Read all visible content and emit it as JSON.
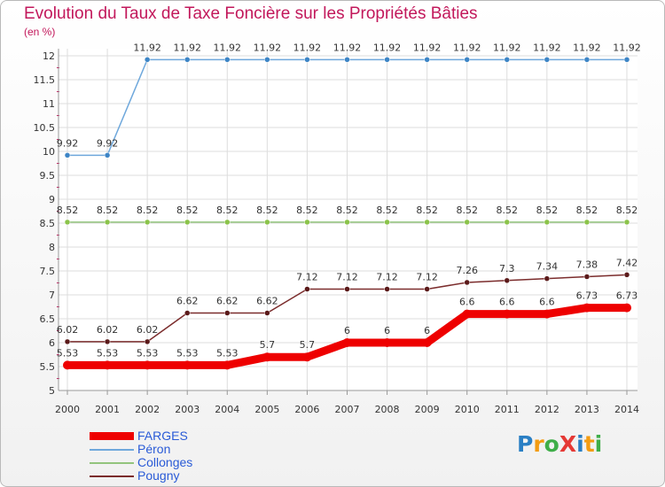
{
  "title": "Evolution du Taux de Taxe Foncière sur les Propriétés Bâties",
  "unit_label": "(en %)",
  "logo": {
    "text": "ProXiti",
    "letters": [
      "P",
      "r",
      "o",
      "X",
      "i",
      "t",
      "i"
    ],
    "colors": [
      "#2a7fc4",
      "#f39c12",
      "#3fae49",
      "#e53935",
      "#2a7fc4",
      "#f39c12",
      "#3fae49"
    ]
  },
  "chart_data": {
    "type": "line",
    "title": "Evolution du Taux de Taxe Foncière sur les Propriétés Bâties",
    "ylabel": "(en %)",
    "xlabel": "",
    "ylim": [
      5,
      12
    ],
    "yticks": [
      5,
      5.5,
      6,
      6.5,
      7,
      7.5,
      8,
      8.5,
      9,
      9.5,
      10,
      10.5,
      11,
      11.5,
      12
    ],
    "ytick_labels": [
      "5",
      "5.5",
      "6",
      "6.5",
      "7",
      "7.5",
      "8",
      "8.5",
      "9",
      "9.5",
      "10",
      "10.5",
      "11",
      "11.5",
      "12"
    ],
    "categories": [
      "2000",
      "2001",
      "2002",
      "2003",
      "2004",
      "2005",
      "2006",
      "2007",
      "2008",
      "2009",
      "2010",
      "2011",
      "2012",
      "2013",
      "2014"
    ],
    "grid": true,
    "legend_position": "bottom-left",
    "series": [
      {
        "name": "FARGES",
        "color": "#ee0000",
        "marker": "#ee0000",
        "width": 9,
        "values": [
          5.53,
          5.53,
          5.53,
          5.53,
          5.53,
          5.7,
          5.7,
          6,
          6,
          6,
          6.6,
          6.6,
          6.6,
          6.73,
          6.73
        ],
        "labels": [
          "5.53",
          "5.53",
          "5.53",
          "5.53",
          "5.53",
          "5.7",
          "5.7",
          "6",
          "6",
          "6",
          "6.6",
          "6.6",
          "6.6",
          "6.73",
          "6.73"
        ]
      },
      {
        "name": "Péron",
        "color": "#6fa8dc",
        "marker": "#3d85c6",
        "width": 1.5,
        "values": [
          9.92,
          9.92,
          11.92,
          11.92,
          11.92,
          11.92,
          11.92,
          11.92,
          11.92,
          11.92,
          11.92,
          11.92,
          11.92,
          11.92,
          11.92
        ],
        "labels": [
          "9.92",
          "9.92",
          "11.92",
          "11.92",
          "11.92",
          "11.92",
          "11.92",
          "11.92",
          "11.92",
          "11.92",
          "11.92",
          "11.92",
          "11.92",
          "11.92",
          "11.92"
        ]
      },
      {
        "name": "Collonges",
        "color": "#93c47d",
        "marker": "#8bc34a",
        "width": 1.5,
        "values": [
          8.52,
          8.52,
          8.52,
          8.52,
          8.52,
          8.52,
          8.52,
          8.52,
          8.52,
          8.52,
          8.52,
          8.52,
          8.52,
          8.52,
          8.52
        ],
        "labels": [
          "8.52",
          "8.52",
          "8.52",
          "8.52",
          "8.52",
          "8.52",
          "8.52",
          "8.52",
          "8.52",
          "8.52",
          "8.52",
          "8.52",
          "8.52",
          "8.52",
          "8.52"
        ]
      },
      {
        "name": "Pougny",
        "color": "#7b2c2c",
        "marker": "#5b1a1a",
        "width": 1.5,
        "values": [
          6.02,
          6.02,
          6.02,
          6.62,
          6.62,
          6.62,
          7.12,
          7.12,
          7.12,
          7.12,
          7.26,
          7.3,
          7.34,
          7.38,
          7.42
        ],
        "labels": [
          "6.02",
          "6.02",
          "6.02",
          "6.62",
          "6.62",
          "6.62",
          "7.12",
          "7.12",
          "7.12",
          "7.12",
          "7.26",
          "7.3",
          "7.34",
          "7.38",
          "7.42"
        ]
      }
    ]
  }
}
